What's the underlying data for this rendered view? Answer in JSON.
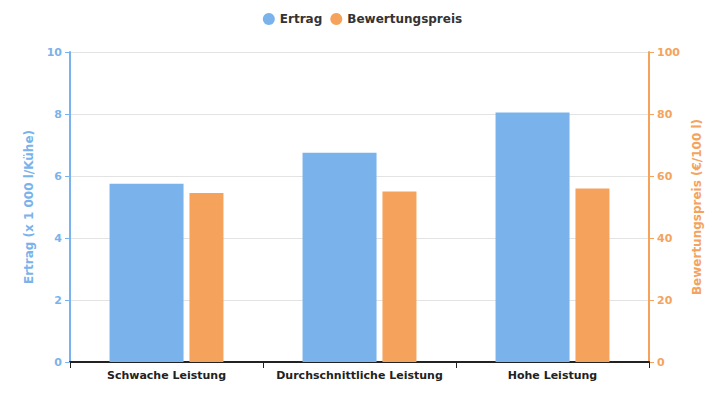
{
  "chart_data": {
    "type": "bar",
    "categories": [
      "Schwache Leistung",
      "Durchschnittliche Leistung",
      "Hohe Leistung"
    ],
    "series": [
      {
        "name": "Ertrag",
        "color": "#7ab3eb",
        "values": [
          5.75,
          6.75,
          8.05
        ]
      },
      {
        "name": "Bewertungspreis",
        "color": "#f5a35c",
        "values": [
          54.5,
          55,
          56
        ],
        "axis": "y2"
      }
    ],
    "ylabel": "Ertrag (x 1 000 l/Kühe)",
    "y2label": "Bewertungspreis (€/100 l)",
    "ylim": [
      0,
      10
    ],
    "yticks": [
      0,
      2,
      4,
      6,
      8,
      10
    ],
    "y2lim": [
      0,
      100
    ],
    "y2ticks": [
      0,
      20,
      40,
      60,
      80,
      100
    ],
    "grid": true,
    "legend": "top"
  }
}
